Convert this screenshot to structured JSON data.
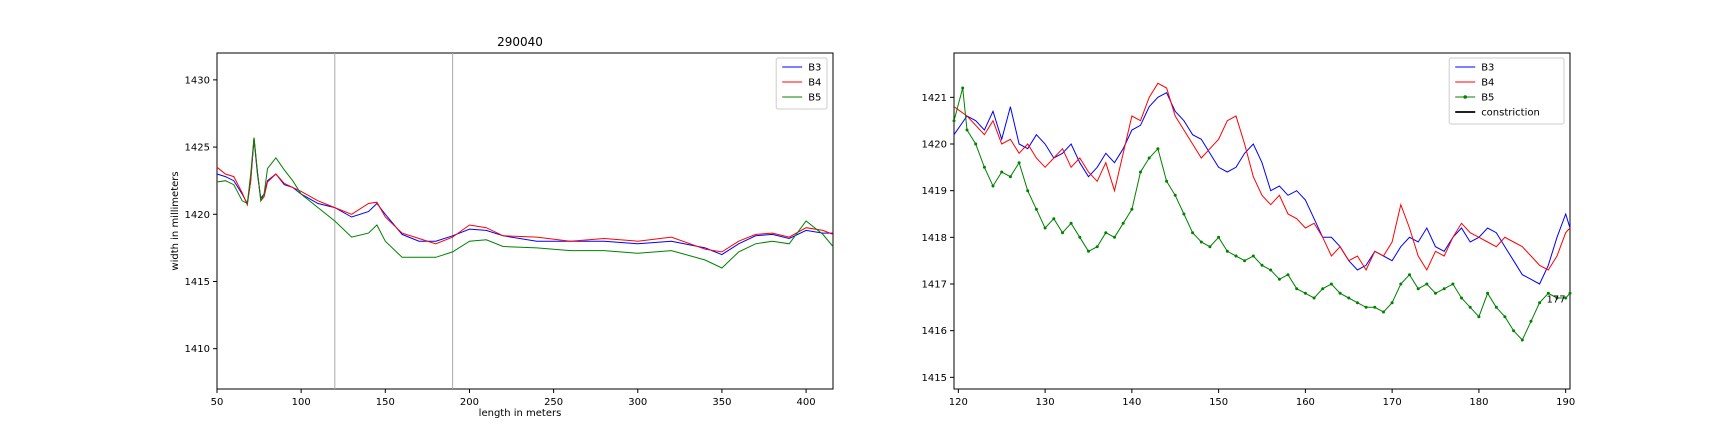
{
  "chart_data": [
    {
      "type": "line",
      "title": "290040",
      "xlabel": "length in meters",
      "ylabel": "width in millimeters",
      "xlim": [
        50,
        416
      ],
      "ylim": [
        1407,
        1432
      ],
      "xticks": [
        50,
        100,
        150,
        200,
        250,
        300,
        350,
        400
      ],
      "yticks": [
        1410,
        1415,
        1420,
        1425,
        1430
      ],
      "vlines": [
        120,
        190
      ],
      "legend_position": "top-right",
      "series": [
        {
          "name": "B3",
          "color": "#0000ff",
          "x": [
            50,
            55,
            60,
            65,
            68,
            70,
            72,
            74,
            76,
            78,
            80,
            85,
            90,
            95,
            100,
            110,
            120,
            130,
            140,
            145,
            150,
            160,
            170,
            180,
            190,
            200,
            210,
            220,
            240,
            260,
            280,
            300,
            320,
            340,
            350,
            360,
            370,
            380,
            390,
            400,
            410,
            416
          ],
          "y": [
            1423,
            1422.8,
            1422.5,
            1421.5,
            1420.8,
            1422.5,
            1425.6,
            1423,
            1421.2,
            1421.5,
            1422.5,
            1423,
            1422.2,
            1422,
            1421.5,
            1420.8,
            1420.5,
            1419.8,
            1420.2,
            1420.8,
            1420,
            1418.5,
            1418,
            1418,
            1418.4,
            1418.9,
            1418.8,
            1418.4,
            1418,
            1418,
            1418,
            1417.8,
            1418,
            1417.5,
            1417,
            1417.8,
            1418.4,
            1418.5,
            1418.2,
            1418.8,
            1418.6,
            1418.6
          ]
        },
        {
          "name": "B4",
          "color": "#ff0000",
          "x": [
            50,
            55,
            60,
            65,
            68,
            70,
            72,
            74,
            76,
            78,
            80,
            85,
            90,
            95,
            100,
            110,
            120,
            130,
            140,
            145,
            150,
            160,
            170,
            180,
            190,
            200,
            210,
            220,
            240,
            260,
            280,
            300,
            320,
            340,
            350,
            360,
            370,
            380,
            390,
            400,
            410,
            416
          ],
          "y": [
            1423.5,
            1423,
            1422.8,
            1421.6,
            1420.7,
            1422.5,
            1425.7,
            1423.2,
            1421,
            1421.3,
            1422.4,
            1423,
            1422.3,
            1422,
            1421.7,
            1421,
            1420.5,
            1420,
            1420.8,
            1420.9,
            1419.8,
            1418.6,
            1418.2,
            1417.8,
            1418.3,
            1419.2,
            1419,
            1418.4,
            1418.3,
            1418,
            1418.2,
            1418,
            1418.3,
            1417.4,
            1417.2,
            1418,
            1418.5,
            1418.6,
            1418.3,
            1419,
            1418.8,
            1418.5
          ]
        },
        {
          "name": "B5",
          "color": "#008000",
          "x": [
            50,
            55,
            60,
            65,
            68,
            70,
            72,
            74,
            76,
            78,
            80,
            85,
            90,
            95,
            100,
            110,
            120,
            130,
            140,
            145,
            150,
            160,
            170,
            180,
            190,
            200,
            210,
            220,
            240,
            260,
            280,
            300,
            320,
            340,
            350,
            360,
            370,
            380,
            390,
            400,
            410,
            416
          ],
          "y": [
            1422.4,
            1422.5,
            1422.2,
            1421,
            1420.8,
            1423,
            1425.7,
            1423.2,
            1421,
            1421.5,
            1423.4,
            1424.2,
            1423.3,
            1422.5,
            1421.5,
            1420.5,
            1419.5,
            1418.3,
            1418.6,
            1419.2,
            1418,
            1416.8,
            1416.8,
            1416.8,
            1417.2,
            1418,
            1418.1,
            1417.6,
            1417.5,
            1417.3,
            1417.3,
            1417.1,
            1417.3,
            1416.6,
            1416,
            1417.2,
            1417.8,
            1418,
            1417.8,
            1419.5,
            1418.5,
            1417.6
          ]
        }
      ]
    },
    {
      "type": "line",
      "title": "",
      "xlabel": "",
      "ylabel": "",
      "xlim": [
        119.5,
        190.5
      ],
      "ylim": [
        1414.75,
        1421.95
      ],
      "xticks": [
        120,
        130,
        140,
        150,
        160,
        170,
        180,
        190
      ],
      "yticks": [
        1415,
        1416,
        1417,
        1418,
        1419,
        1420,
        1421
      ],
      "legend_position": "top-right",
      "annotations": [
        {
          "text": "177",
          "x": 188.9,
          "y": 1416.6
        }
      ],
      "series": [
        {
          "name": "B3",
          "color": "#0000ff",
          "marker": false,
          "x": [
            119.5,
            121,
            122,
            123,
            124,
            125,
            126,
            127,
            128,
            129,
            130,
            131,
            132,
            133,
            134,
            135,
            136,
            137,
            138,
            139,
            140,
            141,
            142,
            143,
            144,
            145,
            146,
            147,
            148,
            149,
            150,
            151,
            152,
            153,
            154,
            155,
            156,
            157,
            158,
            159,
            160,
            161,
            162,
            163,
            164,
            165,
            166,
            167,
            168,
            169,
            170,
            171,
            172,
            173,
            174,
            175,
            176,
            177,
            178,
            179,
            180,
            181,
            182,
            183,
            184,
            185,
            186,
            187,
            188,
            189,
            190,
            190.5
          ],
          "y": [
            1420.2,
            1420.6,
            1420.5,
            1420.3,
            1420.7,
            1420.1,
            1420.8,
            1420.0,
            1419.9,
            1420.2,
            1420.0,
            1419.7,
            1419.8,
            1420.0,
            1419.6,
            1419.3,
            1419.5,
            1419.8,
            1419.6,
            1419.9,
            1420.3,
            1420.4,
            1420.8,
            1421.0,
            1421.1,
            1420.7,
            1420.5,
            1420.2,
            1420.1,
            1419.8,
            1419.5,
            1419.4,
            1419.5,
            1419.8,
            1420.0,
            1419.6,
            1419.0,
            1419.1,
            1418.9,
            1419.0,
            1418.8,
            1418.4,
            1418.0,
            1418.0,
            1417.8,
            1417.5,
            1417.3,
            1417.4,
            1417.7,
            1417.6,
            1417.5,
            1417.8,
            1418.0,
            1417.9,
            1418.2,
            1417.8,
            1417.7,
            1418.0,
            1418.2,
            1417.9,
            1418.0,
            1418.2,
            1418.1,
            1417.8,
            1417.5,
            1417.2,
            1417.1,
            1417.0,
            1417.4,
            1418.0,
            1418.5,
            1418.2
          ]
        },
        {
          "name": "B4",
          "color": "#ff0000",
          "marker": false,
          "x": [
            119.5,
            121,
            122,
            123,
            124,
            125,
            126,
            127,
            128,
            129,
            130,
            131,
            132,
            133,
            134,
            135,
            136,
            137,
            138,
            139,
            140,
            141,
            142,
            143,
            144,
            145,
            146,
            147,
            148,
            149,
            150,
            151,
            152,
            153,
            154,
            155,
            156,
            157,
            158,
            159,
            160,
            161,
            162,
            163,
            164,
            165,
            166,
            167,
            168,
            169,
            170,
            171,
            172,
            173,
            174,
            175,
            176,
            177,
            178,
            179,
            180,
            181,
            182,
            183,
            184,
            185,
            186,
            187,
            188,
            189,
            190,
            190.5
          ],
          "y": [
            1420.8,
            1420.6,
            1420.4,
            1420.2,
            1420.5,
            1420.0,
            1420.1,
            1419.8,
            1420.0,
            1419.7,
            1419.5,
            1419.7,
            1419.9,
            1419.5,
            1419.7,
            1419.4,
            1419.2,
            1419.6,
            1419.0,
            1419.8,
            1420.6,
            1420.5,
            1421.0,
            1421.3,
            1421.2,
            1420.6,
            1420.3,
            1420.0,
            1419.7,
            1419.9,
            1420.1,
            1420.5,
            1420.6,
            1420.0,
            1419.3,
            1418.9,
            1418.7,
            1418.9,
            1418.5,
            1418.4,
            1418.2,
            1418.3,
            1418.0,
            1417.6,
            1417.8,
            1417.5,
            1417.6,
            1417.3,
            1417.7,
            1417.6,
            1417.9,
            1418.7,
            1418.2,
            1417.6,
            1417.3,
            1417.7,
            1417.6,
            1418.0,
            1418.3,
            1418.1,
            1418.0,
            1417.9,
            1417.8,
            1418.0,
            1417.9,
            1417.8,
            1417.6,
            1417.4,
            1417.3,
            1417.6,
            1418.1,
            1418.2
          ]
        },
        {
          "name": "B5",
          "color": "#008000",
          "marker": true,
          "x": [
            119.5,
            120.5,
            121,
            122,
            123,
            124,
            125,
            126,
            127,
            128,
            129,
            130,
            131,
            132,
            133,
            134,
            135,
            136,
            137,
            138,
            139,
            140,
            141,
            142,
            143,
            144,
            145,
            146,
            147,
            148,
            149,
            150,
            151,
            152,
            153,
            154,
            155,
            156,
            157,
            158,
            159,
            160,
            161,
            162,
            163,
            164,
            165,
            166,
            167,
            168,
            169,
            170,
            171,
            172,
            173,
            174,
            175,
            176,
            177,
            178,
            179,
            180,
            181,
            182,
            183,
            184,
            185,
            186,
            187,
            188,
            189,
            190,
            190.5
          ],
          "y": [
            1420.5,
            1421.2,
            1420.3,
            1420.0,
            1419.5,
            1419.1,
            1419.4,
            1419.3,
            1419.6,
            1419.0,
            1418.6,
            1418.2,
            1418.4,
            1418.1,
            1418.3,
            1418.0,
            1417.7,
            1417.8,
            1418.1,
            1418.0,
            1418.3,
            1418.6,
            1419.4,
            1419.7,
            1419.9,
            1419.2,
            1418.9,
            1418.5,
            1418.1,
            1417.9,
            1417.8,
            1418.0,
            1417.7,
            1417.6,
            1417.5,
            1417.6,
            1417.4,
            1417.3,
            1417.1,
            1417.2,
            1416.9,
            1416.8,
            1416.7,
            1416.9,
            1417.0,
            1416.8,
            1416.7,
            1416.6,
            1416.5,
            1416.5,
            1416.4,
            1416.6,
            1417.0,
            1417.2,
            1416.9,
            1417.0,
            1416.8,
            1416.9,
            1417.0,
            1416.7,
            1416.5,
            1416.3,
            1416.8,
            1416.5,
            1416.3,
            1416.0,
            1415.8,
            1416.2,
            1416.6,
            1416.8,
            1416.7,
            1416.7,
            1416.8
          ]
        },
        {
          "name": "constriction",
          "color": "#000000",
          "marker": false,
          "legend_only": true,
          "x": [],
          "y": []
        }
      ]
    }
  ]
}
